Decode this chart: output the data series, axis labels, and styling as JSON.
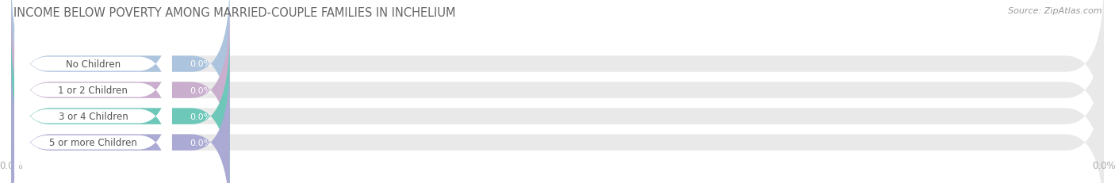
{
  "title": "INCOME BELOW POVERTY AMONG MARRIED-COUPLE FAMILIES IN INCHELIUM",
  "source": "Source: ZipAtlas.com",
  "categories": [
    "No Children",
    "1 or 2 Children",
    "3 or 4 Children",
    "5 or more Children"
  ],
  "values": [
    0.0,
    0.0,
    0.0,
    0.0
  ],
  "bar_colors": [
    "#adc4de",
    "#c9aece",
    "#6dc8ba",
    "#aaaad4"
  ],
  "bar_bg_color": "#e9e9e9",
  "background_color": "#ffffff",
  "title_color": "#666666",
  "source_color": "#999999",
  "tick_label_color": "#aaaaaa",
  "category_text_color": "#555555",
  "value_text_color": "#ffffff",
  "bar_height": 0.62,
  "pill_bg_color": "#f5f5f5",
  "grid_color": "#cccccc"
}
